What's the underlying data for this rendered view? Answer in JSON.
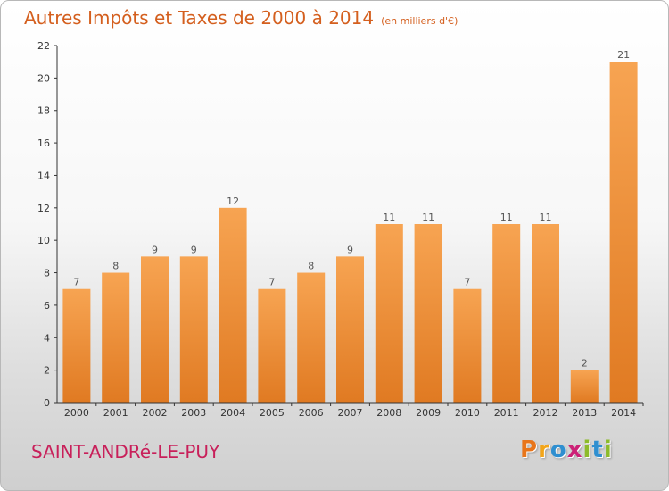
{
  "header": {
    "title": "Autres Impôts et Taxes de 2000 à 2014",
    "subtitle": "(en milliers d'€)"
  },
  "footer": {
    "commune": "SAINT-ANDRé-LE-PUY",
    "logo_letters": [
      "P",
      "r",
      "o",
      "x",
      "i",
      "t",
      "i"
    ],
    "logo_colors": [
      "#e8751a",
      "#f2a51a",
      "#2f8fd0",
      "#cc2277",
      "#8dbb2a",
      "#2f8fd0",
      "#8dbb2a"
    ]
  },
  "chart_data": {
    "type": "bar",
    "title": "Autres Impôts et Taxes de 2000 à 2014",
    "subtitle": "(en milliers d'€)",
    "categories": [
      "2000",
      "2001",
      "2002",
      "2003",
      "2004",
      "2005",
      "2006",
      "2007",
      "2008",
      "2009",
      "2010",
      "2011",
      "2012",
      "2013",
      "2014"
    ],
    "values": [
      7,
      8,
      9,
      9,
      12,
      7,
      8,
      9,
      11,
      11,
      7,
      11,
      11,
      2,
      21
    ],
    "ylim": [
      0,
      22
    ],
    "yticks": [
      0,
      2,
      4,
      6,
      8,
      10,
      12,
      14,
      16,
      18,
      20,
      22
    ],
    "grid": false,
    "colors": {
      "bar_light": "#f7a452",
      "bar_dark": "#e07a22",
      "label": "#555555",
      "axis": "#333333"
    }
  }
}
